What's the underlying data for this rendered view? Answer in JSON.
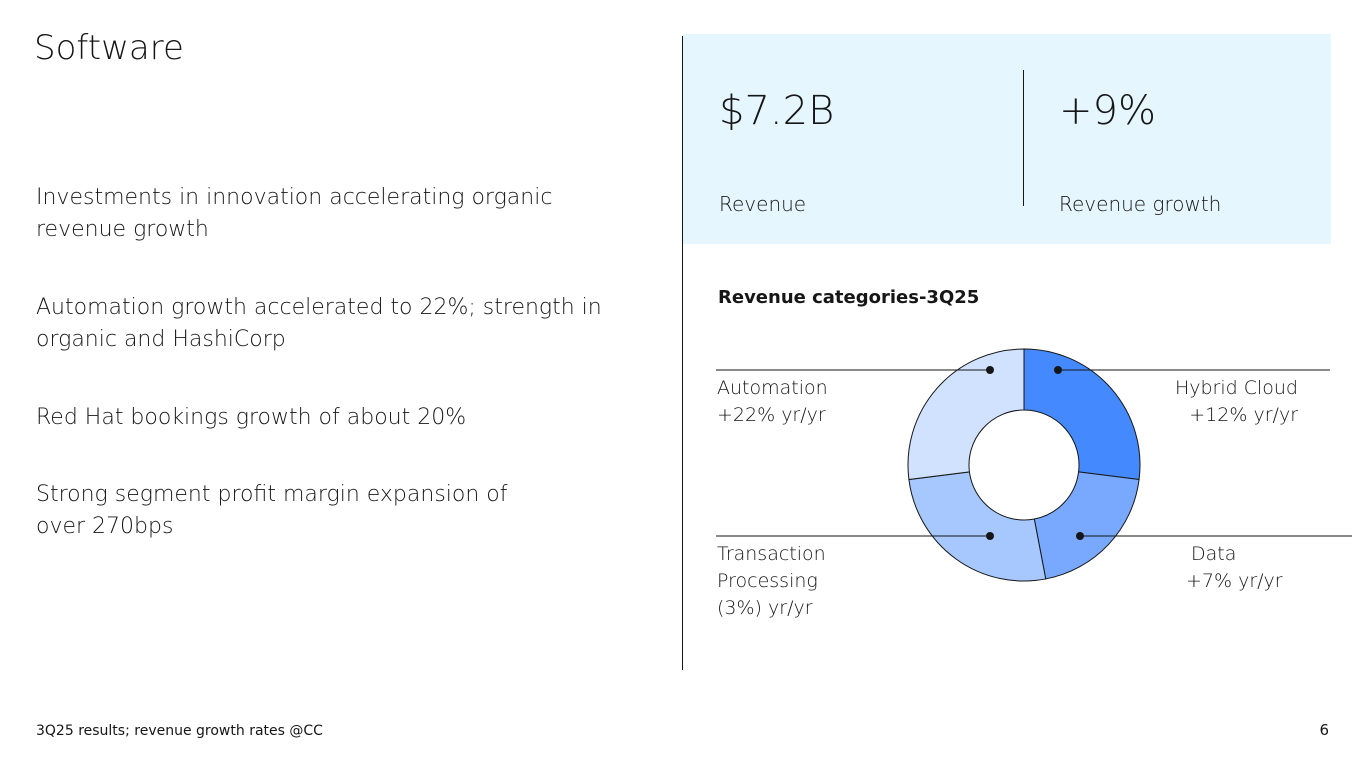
{
  "title": "Software",
  "bullets": [
    "Investments in innovation accelerating organic revenue growth",
    "Automation growth accelerated to 22%; strength in organic and HashiCorp",
    "Red Hat bookings growth of about 20%",
    "Strong segment profit margin expansion of over 270bps"
  ],
  "kpis": [
    {
      "value": "$7.2B",
      "label": "Revenue"
    },
    {
      "value": "+9%",
      "label": "Revenue growth"
    }
  ],
  "chart_data": {
    "type": "pie",
    "title": "Revenue categories-3Q25",
    "slices": [
      {
        "name": "Hybrid Cloud",
        "growth": "+12% yr/yr",
        "share": 27,
        "color": "#4589ff"
      },
      {
        "name": "Data",
        "growth": "+7% yr/yr",
        "share": 20,
        "color": "#78a9ff"
      },
      {
        "name": "Transaction Processing",
        "growth": "(3%) yr/yr",
        "share": 26,
        "color": "#a6c8ff"
      },
      {
        "name": "Automation",
        "growth": "+22% yr/yr",
        "share": 27,
        "color": "#d0e2ff"
      }
    ]
  },
  "labels": {
    "transaction_1": "Transaction",
    "transaction_2": "Processing"
  },
  "footer": "3Q25 results; revenue growth rates @CC",
  "page_number": "6"
}
